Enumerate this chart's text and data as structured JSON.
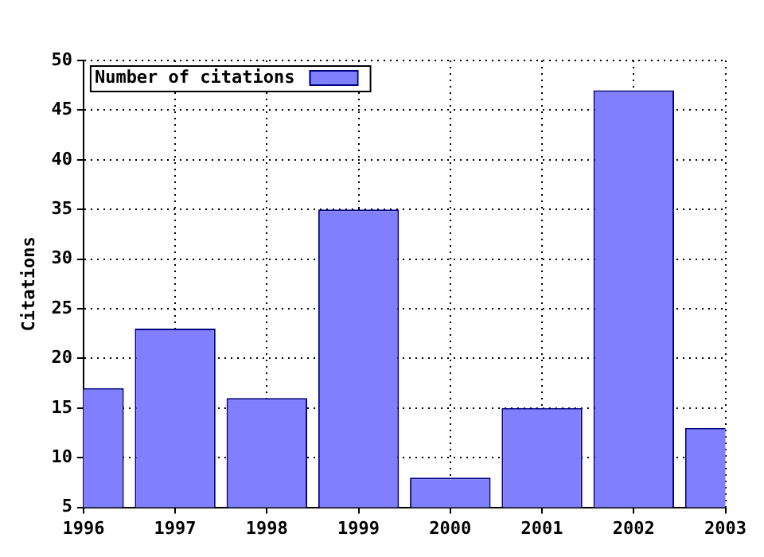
{
  "chart_data": {
    "type": "bar",
    "ylabel": "Citations",
    "x": [
      1996,
      1997,
      1998,
      1999,
      2000,
      2001,
      2002,
      2003
    ],
    "series": [
      {
        "name": "Number of citations",
        "color": "#8080ff",
        "values": [
          17,
          23,
          16,
          35,
          8,
          15,
          47,
          13
        ]
      }
    ],
    "xlim": [
      1996,
      2003
    ],
    "xticks": [
      1996,
      1997,
      1998,
      1999,
      2000,
      2001,
      2002,
      2003
    ],
    "ylim": [
      5,
      50
    ],
    "yticks": [
      5,
      10,
      15,
      20,
      25,
      30,
      35,
      40,
      45,
      50
    ],
    "grid": true,
    "legend": "top left",
    "line_style": "dotted"
  }
}
